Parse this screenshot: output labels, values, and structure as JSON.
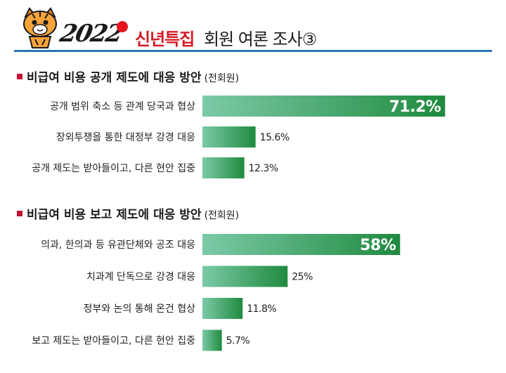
{
  "header": {
    "year": "2022",
    "title_highlight": "신년특집",
    "title_rest": "회원 여론 조사③"
  },
  "colors": {
    "accent_red": "#d41c27",
    "rule_blue": "#2b73b6",
    "bar_start": "#7ccaa7",
    "bar_end": "#1f8a3e"
  },
  "chart_data": [
    {
      "type": "bar",
      "orientation": "horizontal",
      "title": "비급여 비용 공개 제도에 대응 방안",
      "subtitle": "(전회원)",
      "categories": [
        "공개 범위 축소 등 관계 당국과 협상",
        "장외투쟁을 통한 대정부 강경 대응",
        "공개 제도는 받아들이고, 다른 현안 집중"
      ],
      "values": [
        71.2,
        15.6,
        12.3
      ],
      "value_labels": [
        "71.2%",
        "15.6%",
        "12.3%"
      ],
      "unit": "%"
    },
    {
      "type": "bar",
      "orientation": "horizontal",
      "title": "비급여 비용 보고 제도에 대응 방안",
      "subtitle": "(전회원)",
      "categories": [
        "의과, 한의과 등 유관단체와 공조 대응",
        "치과계 단독으로 강경 대응",
        "정부와 논의 통해 온건 협상",
        "보고 제도는 받아들이고, 다른 현안 집중"
      ],
      "values": [
        58,
        25,
        11.8,
        5.7
      ],
      "value_labels": [
        "58%",
        "25%",
        "11.8%",
        "5.7%"
      ],
      "unit": "%"
    }
  ]
}
